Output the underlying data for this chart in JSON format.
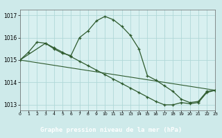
{
  "title": "Graphe pression niveau de la mer (hPa)",
  "background_color": "#ceeaea",
  "plot_bg_color": "#d8f0f0",
  "footer_color": "#2d6e2d",
  "footer_text_color": "#ffffff",
  "grid_color": "#b0d8d8",
  "line_color": "#2d5a2d",
  "xlim": [
    0,
    23
  ],
  "ylim": [
    1012.75,
    1017.25
  ],
  "yticks": [
    1013,
    1014,
    1015,
    1016,
    1017
  ],
  "xticks": [
    0,
    1,
    2,
    3,
    4,
    5,
    6,
    7,
    8,
    9,
    10,
    11,
    12,
    13,
    14,
    15,
    16,
    17,
    18,
    19,
    20,
    21,
    22,
    23
  ],
  "series1_x": [
    0,
    1,
    2,
    3,
    4,
    5,
    6,
    7,
    8,
    9,
    10,
    11,
    12,
    13,
    14,
    15,
    16,
    17,
    18,
    19,
    20,
    21,
    22,
    23
  ],
  "series1_y": [
    1015.0,
    1015.35,
    1015.8,
    1015.75,
    1015.5,
    1015.3,
    1015.2,
    1016.0,
    1016.3,
    1016.75,
    1016.95,
    1016.8,
    1016.5,
    1016.1,
    1015.5,
    1014.3,
    1014.1,
    1013.85,
    1013.6,
    1013.25,
    1013.1,
    1013.15,
    1013.6,
    1013.65
  ],
  "series2_x": [
    0,
    3,
    4,
    5,
    6,
    7,
    8,
    9,
    10,
    11,
    12,
    13,
    14,
    15,
    16,
    17,
    18,
    19,
    20,
    21,
    22,
    23
  ],
  "series2_y": [
    1015.0,
    1015.75,
    1015.55,
    1015.35,
    1015.15,
    1014.95,
    1014.75,
    1014.55,
    1014.35,
    1014.15,
    1013.95,
    1013.75,
    1013.55,
    1013.35,
    1013.15,
    1013.0,
    1013.0,
    1013.1,
    1013.05,
    1013.1,
    1013.55,
    1013.65
  ],
  "series3_x": [
    0,
    23
  ],
  "series3_y": [
    1015.0,
    1013.65
  ],
  "xlabel": "Graphe pression niveau de la mer (hPa)"
}
